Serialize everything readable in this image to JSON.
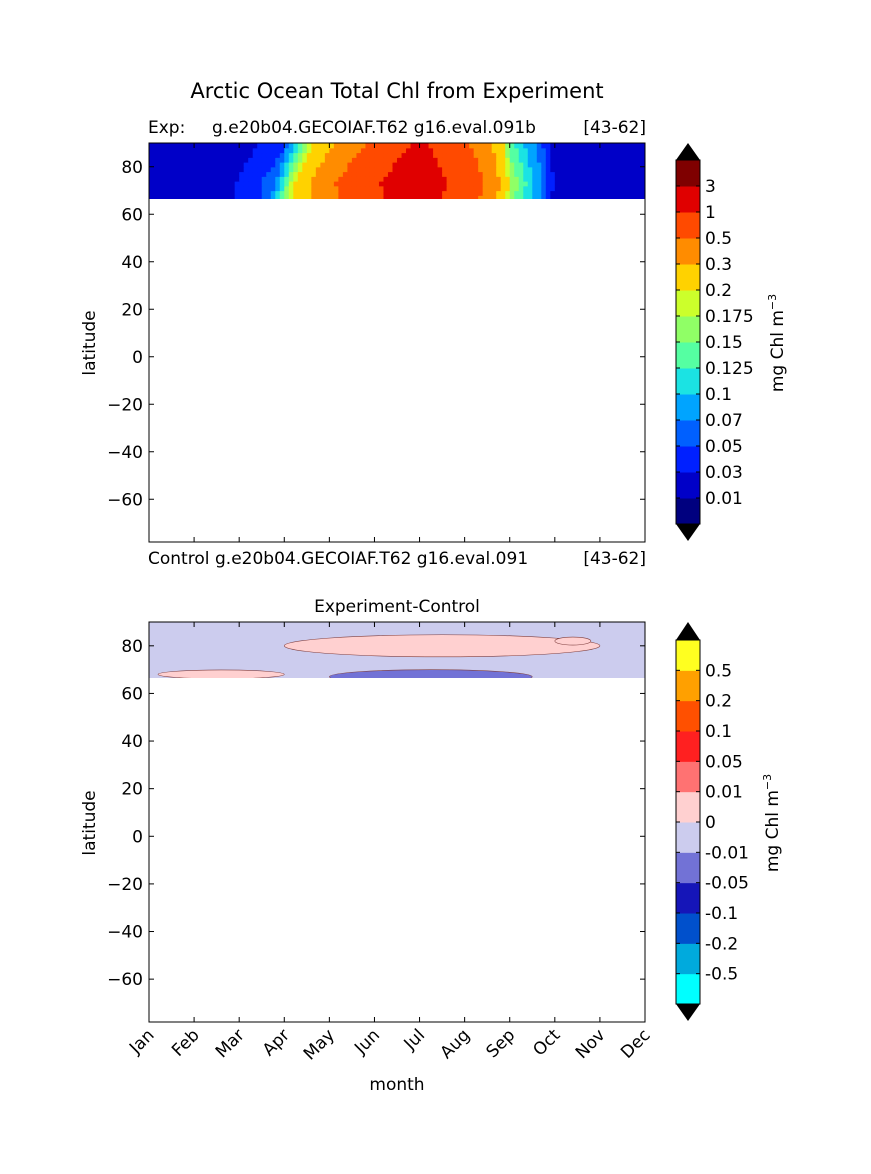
{
  "figure": {
    "title": "Arctic Ocean Total Chl from Experiment"
  },
  "panels": {
    "top": {
      "exp_prefix": "Exp:",
      "exp_case": "g.e20b04.GECOIAF.T62 g16.eval.091b",
      "years": "[43-62]",
      "ylabel": "latitude"
    },
    "bottom": {
      "control_label": "Control",
      "control_case": "g.e20b04.GECOIAF.T62 g16.eval.091",
      "years": "[43-62]",
      "title": "Experiment-Control",
      "ylabel": "latitude",
      "xlabel": "month"
    }
  },
  "colorbars": {
    "top": {
      "label": "mg Chl m",
      "label_sup": "−3",
      "colors": [
        "#00007f",
        "#0000c8",
        "#0020ff",
        "#0060ff",
        "#00a4ff",
        "#1be3e3",
        "#55ffa2",
        "#90ff66",
        "#ccff2b",
        "#ffd200",
        "#ff8c00",
        "#ff4a00",
        "#e00000",
        "#7f0000"
      ],
      "ticks": [
        "0.01",
        "0.03",
        "0.05",
        "0.07",
        "0.1",
        "0.125",
        "0.15",
        "0.175",
        "0.2",
        "0.3",
        "0.5",
        "1",
        "3"
      ]
    },
    "bottom": {
      "label": "mg Chl m",
      "label_sup": "−3",
      "colors": [
        "#00ffff",
        "#00aadd",
        "#0050cc",
        "#1515b8",
        "#7272d6",
        "#ccccee",
        "#ffd0d0",
        "#ff7272",
        "#ff2020",
        "#ff5000",
        "#ffa000",
        "#ffff20"
      ],
      "ticks": [
        "-0.5",
        "-0.2",
        "-0.1",
        "-0.05",
        "-0.01",
        "0",
        "0.01",
        "0.05",
        "0.1",
        "0.2",
        "0.5"
      ]
    }
  },
  "chart_data": [
    {
      "type": "heatmap",
      "title": "Exp:    g.e20b04.GECOIAF.T62 g16.eval.091b",
      "xlabel": "",
      "ylabel": "latitude",
      "x_categories": [
        "Jan",
        "Feb",
        "Mar",
        "Apr",
        "May",
        "Jun",
        "Jul",
        "Aug",
        "Sep",
        "Oct",
        "Nov",
        "Dec"
      ],
      "xlim": [
        0,
        11
      ],
      "ylim": [
        -78,
        90
      ],
      "yticks": [
        80,
        60,
        40,
        20,
        0,
        -20,
        -40,
        -60
      ],
      "data_extent_lat": [
        66,
        90
      ],
      "levels": [
        0.01,
        0.03,
        0.05,
        0.07,
        0.1,
        0.125,
        0.15,
        0.175,
        0.2,
        0.3,
        0.5,
        1,
        3
      ],
      "month_profile_chl_mid_lat": [
        0.02,
        0.02,
        0.02,
        0.05,
        0.3,
        0.6,
        1.2,
        0.6,
        0.15,
        0.02,
        0.02,
        0.02
      ]
    },
    {
      "type": "heatmap",
      "title": "Experiment-Control",
      "xlabel": "month",
      "ylabel": "latitude",
      "x_categories": [
        "Jan",
        "Feb",
        "Mar",
        "Apr",
        "May",
        "Jun",
        "Jul",
        "Aug",
        "Sep",
        "Oct",
        "Nov",
        "Dec"
      ],
      "xlim": [
        0,
        11
      ],
      "ylim": [
        -78,
        90
      ],
      "yticks": [
        80,
        60,
        40,
        20,
        0,
        -20,
        -40,
        -60
      ],
      "data_extent_lat": [
        66,
        90
      ],
      "levels": [
        -0.5,
        -0.2,
        -0.1,
        -0.05,
        -0.01,
        0,
        0.01,
        0.05,
        0.1,
        0.2,
        0.5
      ],
      "background_value_range": [
        -0.01,
        0
      ],
      "features": [
        {
          "lat": 68,
          "month_range": [
            0.2,
            3.0
          ],
          "value_range": [
            0,
            0.01
          ]
        },
        {
          "lat": 80,
          "month_range": [
            3.0,
            10.0
          ],
          "value_range": [
            0,
            0.01
          ]
        },
        {
          "lat": 67,
          "month_range": [
            4.0,
            8.5
          ],
          "value_range": [
            -0.05,
            -0.01
          ]
        },
        {
          "lat": 82,
          "month_range": [
            9.0,
            9.8
          ],
          "value_range": [
            0,
            0.01
          ]
        }
      ]
    }
  ]
}
